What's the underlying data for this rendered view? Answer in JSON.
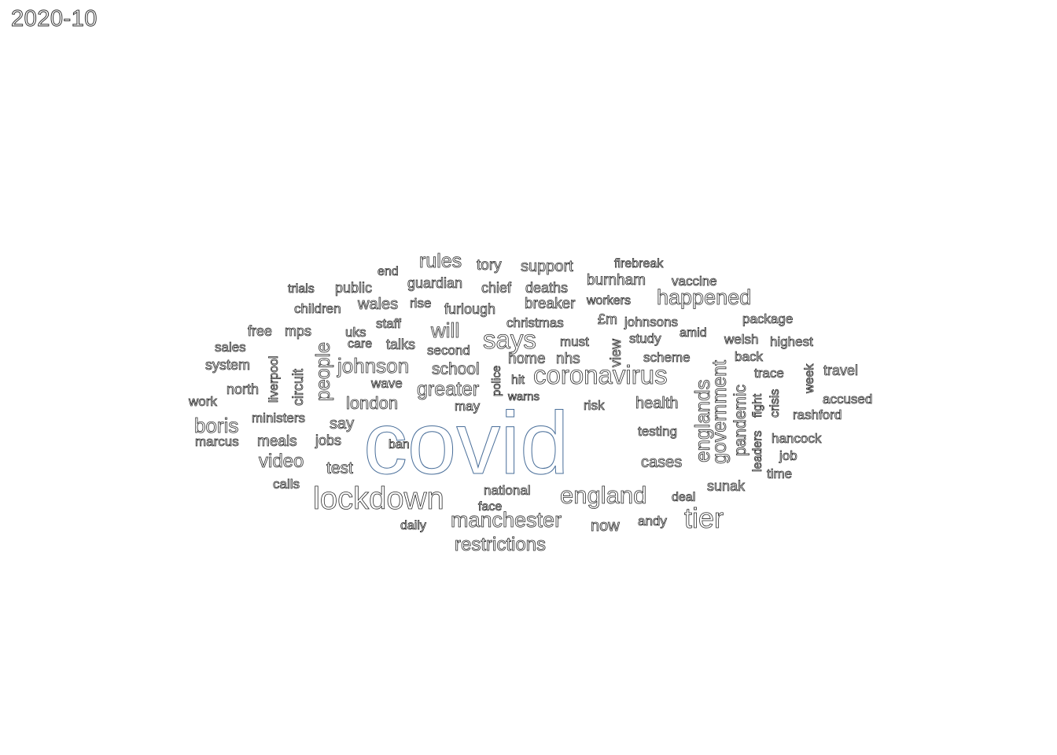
{
  "title": "2020-10",
  "words": [
    {
      "text": "covid",
      "color": "#4a6f9a"
    },
    {
      "text": "lockdown"
    },
    {
      "text": "coronavirus"
    },
    {
      "text": "england"
    },
    {
      "text": "tier"
    },
    {
      "text": "says"
    },
    {
      "text": "manchester"
    },
    {
      "text": "johnson"
    },
    {
      "text": "englands"
    },
    {
      "text": "government"
    },
    {
      "text": "happened"
    },
    {
      "text": "restrictions"
    },
    {
      "text": "boris"
    },
    {
      "text": "greater"
    },
    {
      "text": "rules"
    },
    {
      "text": "people"
    },
    {
      "text": "london"
    },
    {
      "text": "video"
    },
    {
      "text": "pandemic"
    },
    {
      "text": "will"
    },
    {
      "text": "school"
    },
    {
      "text": "home"
    },
    {
      "text": "nhs"
    },
    {
      "text": "meals"
    },
    {
      "text": "test"
    },
    {
      "text": "health"
    },
    {
      "text": "cases"
    },
    {
      "text": "say"
    },
    {
      "text": "now"
    },
    {
      "text": "support"
    },
    {
      "text": "burnham"
    },
    {
      "text": "breaker"
    },
    {
      "text": "wales"
    },
    {
      "text": "deaths"
    },
    {
      "text": "guardian"
    },
    {
      "text": "furlough"
    },
    {
      "text": "christmas"
    },
    {
      "text": "johnsons"
    },
    {
      "text": "vaccine"
    },
    {
      "text": "package"
    },
    {
      "text": "highest"
    },
    {
      "text": "tory"
    },
    {
      "text": "chief"
    },
    {
      "text": "public"
    },
    {
      "text": "children"
    },
    {
      "text": "trials"
    },
    {
      "text": "end"
    },
    {
      "text": "firebreak"
    },
    {
      "text": "workers"
    },
    {
      "text": "£m"
    },
    {
      "text": "study"
    },
    {
      "text": "amid"
    },
    {
      "text": "welsh"
    },
    {
      "text": "must"
    },
    {
      "text": "view"
    },
    {
      "text": "scheme"
    },
    {
      "text": "back"
    },
    {
      "text": "trace"
    },
    {
      "text": "week"
    },
    {
      "text": "travel"
    },
    {
      "text": "accused"
    },
    {
      "text": "rashford"
    },
    {
      "text": "hancock"
    },
    {
      "text": "job"
    },
    {
      "text": "time"
    },
    {
      "text": "leaders"
    },
    {
      "text": "fight"
    },
    {
      "text": "crisis"
    },
    {
      "text": "sunak"
    },
    {
      "text": "deal"
    },
    {
      "text": "andy"
    },
    {
      "text": "testing"
    },
    {
      "text": "risk"
    },
    {
      "text": "may"
    },
    {
      "text": "warns"
    },
    {
      "text": "hit"
    },
    {
      "text": "police"
    },
    {
      "text": "second"
    },
    {
      "text": "talks"
    },
    {
      "text": "staff"
    },
    {
      "text": "rise"
    },
    {
      "text": "uks"
    },
    {
      "text": "care"
    },
    {
      "text": "free"
    },
    {
      "text": "mps"
    },
    {
      "text": "sales"
    },
    {
      "text": "system"
    },
    {
      "text": "liverpool"
    },
    {
      "text": "circuit"
    },
    {
      "text": "north"
    },
    {
      "text": "wave"
    },
    {
      "text": "work"
    },
    {
      "text": "ministers"
    },
    {
      "text": "marcus"
    },
    {
      "text": "jobs"
    },
    {
      "text": "ban"
    },
    {
      "text": "calls"
    },
    {
      "text": "national"
    },
    {
      "text": "face"
    },
    {
      "text": "daily"
    }
  ]
}
